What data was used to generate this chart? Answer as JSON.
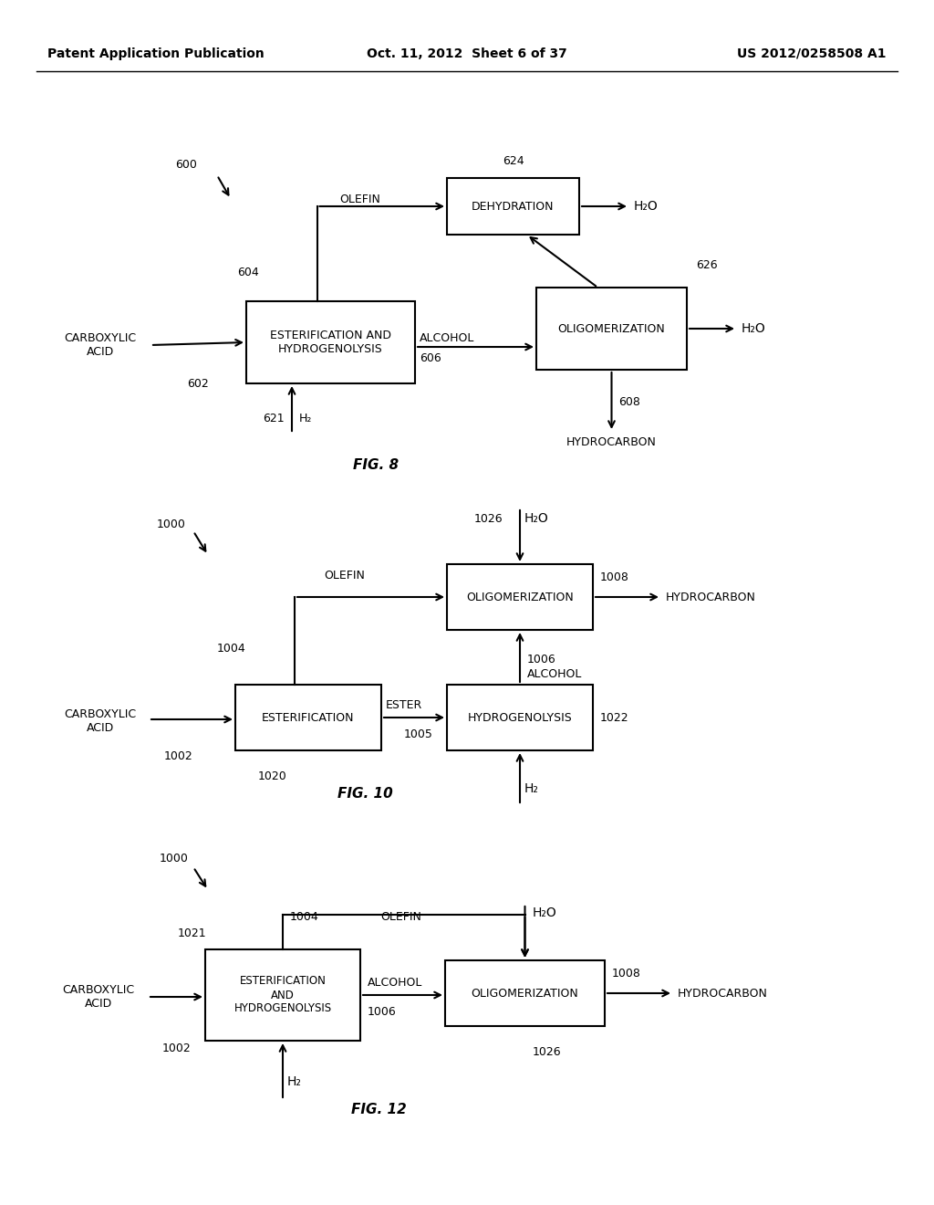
{
  "header_left": "Patent Application Publication",
  "header_center": "Oct. 11, 2012  Sheet 6 of 37",
  "header_right": "US 2012/0258508 A1",
  "bg_color": "#ffffff"
}
